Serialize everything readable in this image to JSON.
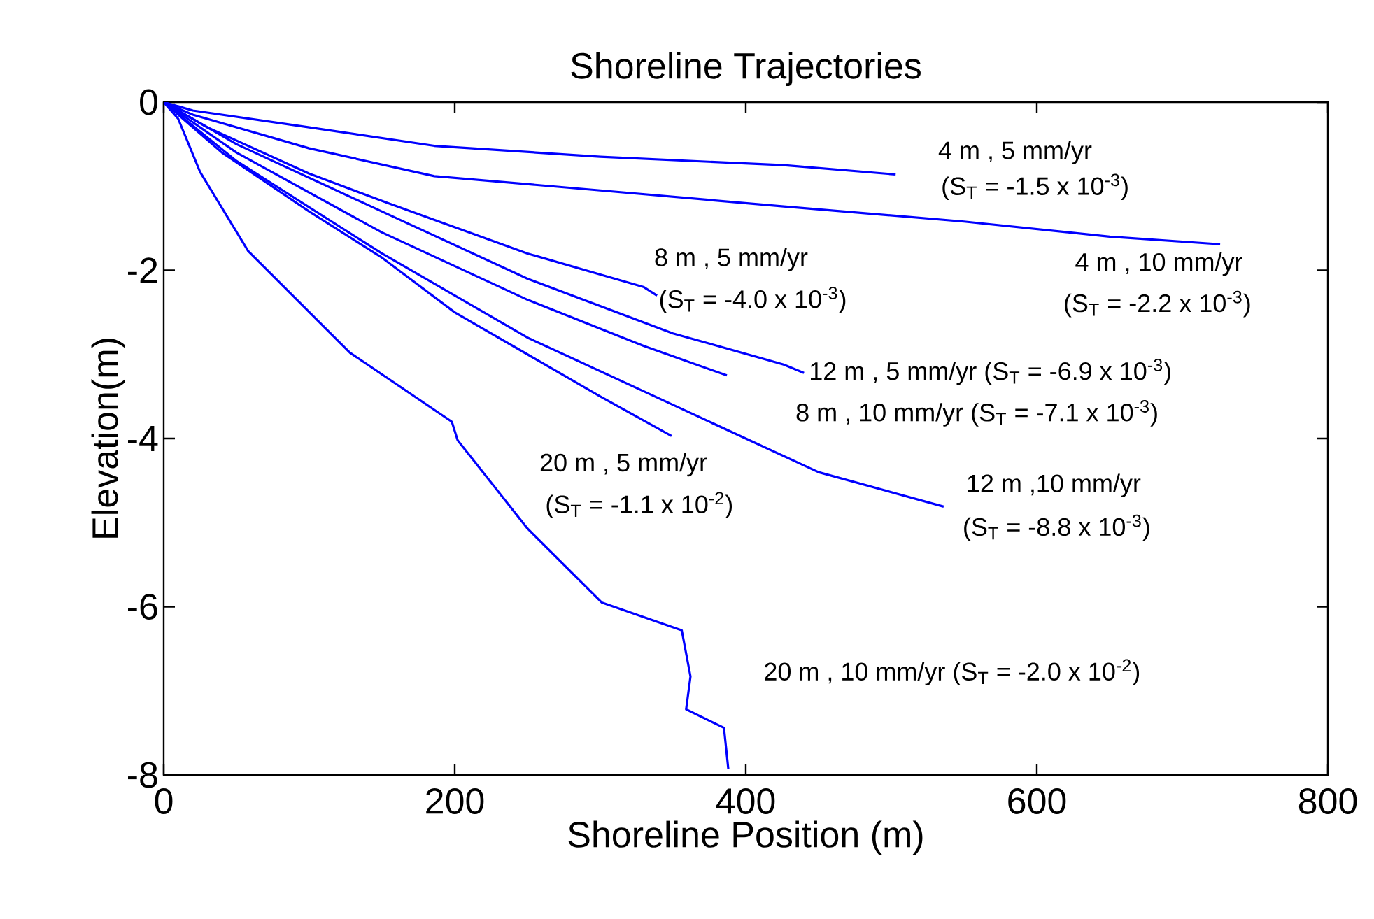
{
  "chart_data": {
    "type": "line",
    "title": "Shoreline Trajectories",
    "xlabel": "Shoreline Position (m)",
    "ylabel": "Elevation(m)",
    "xlim": [
      0,
      800
    ],
    "ylim": [
      -8,
      0
    ],
    "xticks": [
      0,
      200,
      400,
      600,
      800
    ],
    "yticks": [
      -8,
      -6,
      -4,
      -2,
      0
    ],
    "grid": false,
    "marker": "none",
    "line_style": "solid",
    "series": [
      {
        "color": "#0000ff",
        "x": [
          0,
          20,
          100,
          186,
          300,
          426,
          503
        ],
        "values": [
          0,
          -0.1,
          -0.3,
          -0.52,
          -0.65,
          -0.75,
          -0.86
        ]
      },
      {
        "color": "#0000ff",
        "x": [
          0,
          20,
          100,
          186,
          300,
          426,
          550,
          650,
          726
        ],
        "values": [
          0,
          -0.15,
          -0.55,
          -0.88,
          -1.05,
          -1.24,
          -1.42,
          -1.6,
          -1.69
        ]
      },
      {
        "color": "#0000ff",
        "x": [
          0,
          30,
          100,
          154,
          250,
          300,
          330,
          339
        ],
        "values": [
          0,
          -0.3,
          -0.85,
          -1.2,
          -1.8,
          -2.05,
          -2.2,
          -2.3
        ]
      },
      {
        "color": "#0000ff",
        "x": [
          0,
          50,
          150,
          250,
          350,
          426,
          440
        ],
        "values": [
          0,
          -0.5,
          -1.3,
          -2.1,
          -2.75,
          -3.12,
          -3.22
        ]
      },
      {
        "color": "#0000ff",
        "x": [
          0,
          50,
          150,
          250,
          330,
          387
        ],
        "values": [
          0,
          -0.6,
          -1.55,
          -2.35,
          -2.9,
          -3.25
        ]
      },
      {
        "color": "#0000ff",
        "x": [
          0,
          40,
          100,
          150,
          200,
          250,
          300,
          349
        ],
        "values": [
          0,
          -0.6,
          -1.3,
          -1.85,
          -2.5,
          -3.0,
          -3.5,
          -3.97
        ]
      },
      {
        "color": "#0000ff",
        "x": [
          0,
          50,
          150,
          250,
          350,
          400,
          450,
          536
        ],
        "values": [
          0,
          -0.7,
          -1.8,
          -2.8,
          -3.6,
          -4.0,
          -4.4,
          -4.81
        ]
      },
      {
        "color": "#0000ff",
        "x": [
          0,
          10,
          25,
          58,
          128,
          198,
          202,
          250,
          301,
          356,
          362,
          359,
          385,
          388
        ],
        "values": [
          0,
          -0.2,
          -0.83,
          -1.77,
          -2.98,
          -3.8,
          -4.02,
          -5.07,
          -5.95,
          -6.28,
          -6.83,
          -7.22,
          -7.44,
          -7.93
        ]
      }
    ],
    "annotations": [
      "4 m , 5 mm/yr",
      "(S$_{T}$ = -1.5 x 10$^{-3}$)",
      "4 m , 10 mm/yr",
      "(S$_{T}$ = -2.2 x 10$^{-3}$)",
      "8 m , 5 mm/yr",
      "(S$_{T}$ = -4.0 x 10$^{-3}$)",
      "12 m , 5 mm/yr  (S$_{T}$ = -6.9 x 10$^{-3}$)",
      "8 m , 10 mm/yr  (S$_{T}$ = -7.1 x 10$^{-3}$)",
      "20 m , 5 mm/yr",
      "(S$_{T}$ = -1.1 x 10$^{-2}$)",
      "12 m ,10 mm/yr",
      "(S$_{T}$ = -8.8 x 10$^{-3}$)",
      "20 m , 10 mm/yr (S$_{T}$ = -2.0 x 10$^{-2}$)"
    ]
  }
}
